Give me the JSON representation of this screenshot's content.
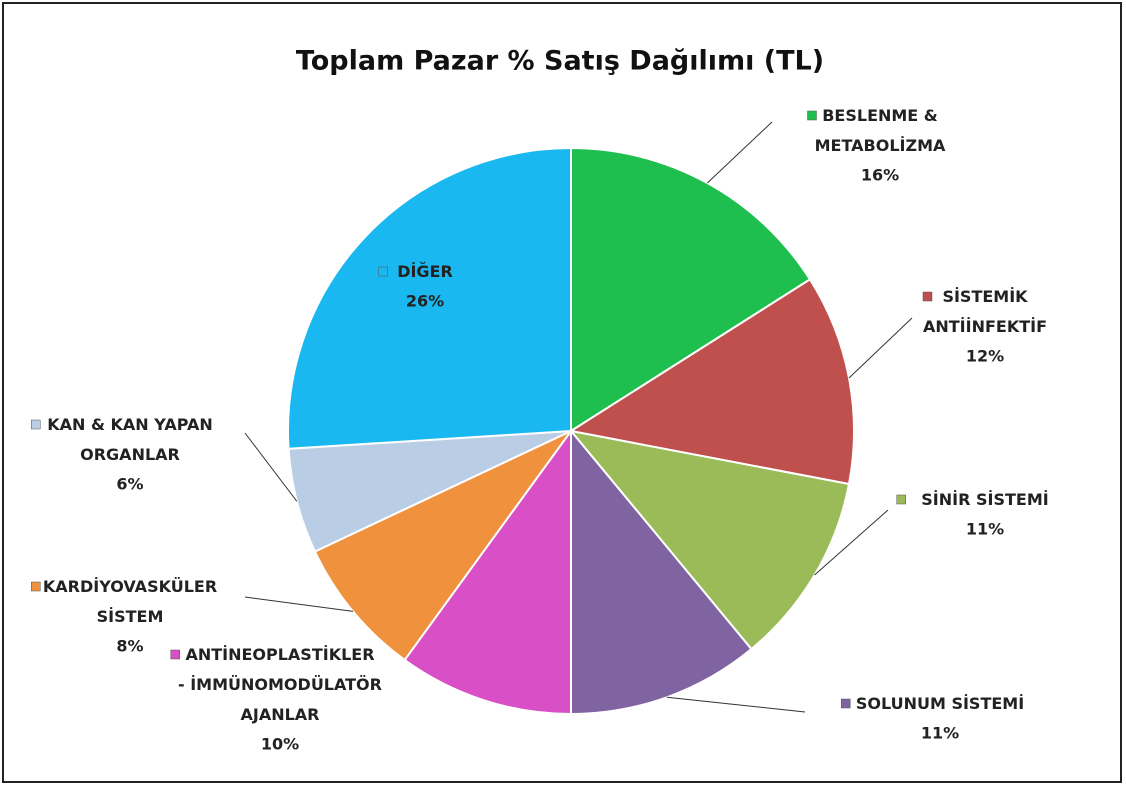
{
  "chart_data": {
    "type": "pie",
    "title": "Toplam Pazar % Satış Dağılımı (TL)",
    "categories": [
      "BESLENME & METABOLİZMA",
      "SİSTEMİK ANTİİNFEKTİF",
      "SİNİR SİSTEMİ",
      "SOLUNUM SİSTEMİ",
      "ANTİNEOPLASTİKLER - İMMÜNOMODÜLATÖR AJANLAR",
      "KARDİYOVASKÜLER SİSTEM",
      "KAN & KAN YAPAN ORGANLAR",
      "DİĞER"
    ],
    "values": [
      16,
      12,
      11,
      11,
      10,
      8,
      6,
      26
    ],
    "value_labels": [
      "16%",
      "12%",
      "11%",
      "11%",
      "10%",
      "8%",
      "6%",
      "26%"
    ],
    "colors": [
      "#1fbf4f",
      "#c0504d",
      "#9bbb59",
      "#8064a2",
      "#d84fc6",
      "#f0913d",
      "#b9cde5",
      "#1ab8f0"
    ]
  }
}
